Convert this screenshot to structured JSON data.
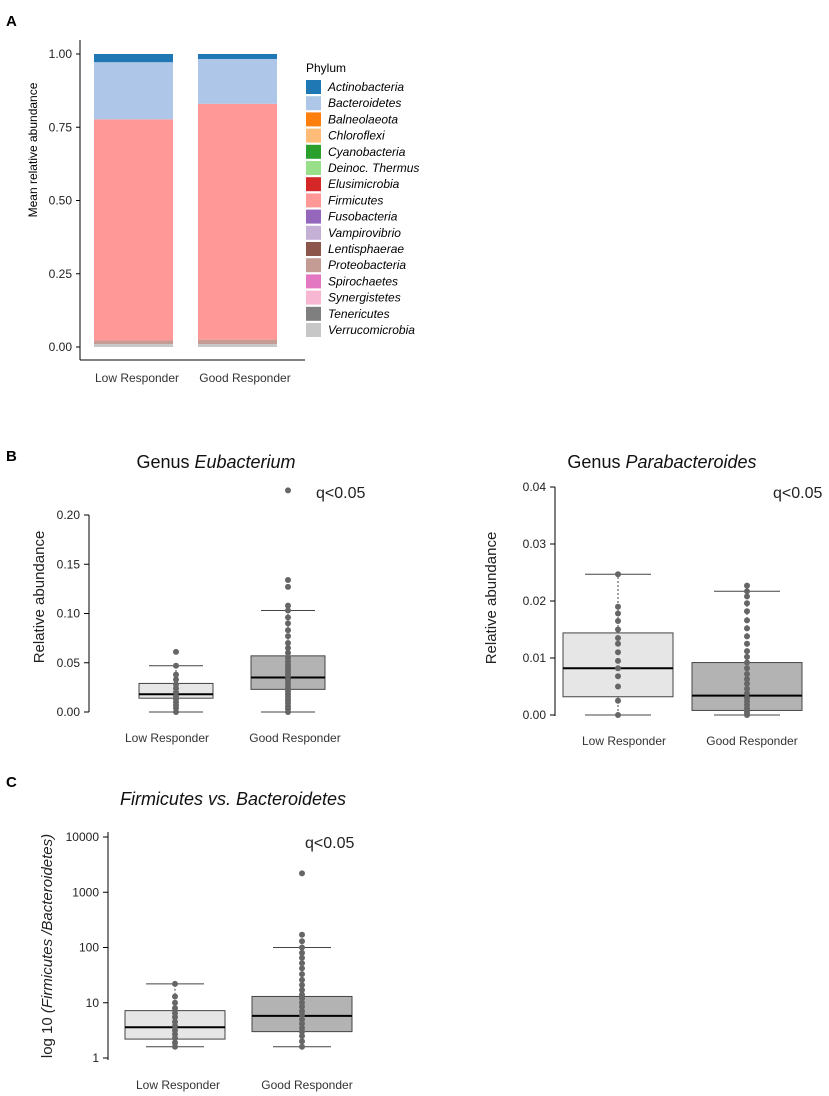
{
  "panels": {
    "a": "A",
    "b": "B",
    "c": "C"
  },
  "chart_data": [
    {
      "id": "stacked",
      "type": "bar",
      "stacked": true,
      "title": "",
      "xlabel": "",
      "ylabel": "Mean relative abundance",
      "ylim": [
        0,
        1
      ],
      "yticks": [
        0,
        0.25,
        0.5,
        0.75,
        1
      ],
      "ytick_labels": [
        "0.00",
        "0.25",
        "0.50",
        "0.75",
        "1.00"
      ],
      "categories": [
        "Low Responder",
        "Good Responder"
      ],
      "legend_title": "Phylum",
      "legend_position": "right",
      "series": [
        {
          "name": "Actinobacteria",
          "color": "#1f77b4",
          "values": [
            0.028,
            0.017
          ]
        },
        {
          "name": "Bacteroidetes",
          "color": "#aec7e8",
          "values": [
            0.195,
            0.153
          ]
        },
        {
          "name": "Balneolaeota",
          "color": "#ff7f0e",
          "values": [
            0.0,
            0.0
          ]
        },
        {
          "name": "Chloroflexi",
          "color": "#ffbb78",
          "values": [
            0.0,
            0.0
          ]
        },
        {
          "name": "Cyanobacteria",
          "color": "#2ca02c",
          "values": [
            0.0,
            0.0
          ]
        },
        {
          "name": "Deinoc. Thermus",
          "color": "#98df8a",
          "values": [
            0.0,
            0.0
          ]
        },
        {
          "name": "Elusimicrobia",
          "color": "#d62728",
          "values": [
            0.0,
            0.0
          ]
        },
        {
          "name": "Firmicutes",
          "color": "#ff9896",
          "values": [
            0.755,
            0.805
          ]
        },
        {
          "name": "Fusobacteria",
          "color": "#9467bd",
          "values": [
            0.0,
            0.0
          ]
        },
        {
          "name": "Vampirovibrio",
          "color": "#c5b0d5",
          "values": [
            0.0,
            0.0
          ]
        },
        {
          "name": "Lentisphaerae",
          "color": "#8c564b",
          "values": [
            0.0,
            0.0
          ]
        },
        {
          "name": "Proteobacteria",
          "color": "#c49c94",
          "values": [
            0.012,
            0.015
          ]
        },
        {
          "name": "Spirochaetes",
          "color": "#e377c2",
          "values": [
            0.0,
            0.0
          ]
        },
        {
          "name": "Synergistetes",
          "color": "#f7b6d2",
          "values": [
            0.0,
            0.0
          ]
        },
        {
          "name": "Tenericutes",
          "color": "#7f7f7f",
          "values": [
            0.0,
            0.0
          ]
        },
        {
          "name": "Verrucomicrobia",
          "color": "#c7c7c7",
          "values": [
            0.01,
            0.01
          ]
        }
      ]
    },
    {
      "id": "eubacterium",
      "type": "box",
      "title_prefix": "Genus ",
      "title_italic": "Eubacterium",
      "annotation": "q<0.05",
      "ylabel": "Relative abundance",
      "ylim": [
        0,
        0.2
      ],
      "yticks": [
        0,
        0.05,
        0.1,
        0.15,
        0.2
      ],
      "ytick_labels": [
        "0.00",
        "0.05",
        "0.10",
        "0.15",
        "0.20"
      ],
      "categories": [
        "Low Responder",
        "Good Responder"
      ],
      "boxes": [
        {
          "q1": 0.014,
          "median": 0.018,
          "q3": 0.029,
          "whisker_low": 0.0,
          "whisker_high": 0.047,
          "fill": "#e6e6e6",
          "points": [
            0.0,
            0.004,
            0.007,
            0.01,
            0.013,
            0.016,
            0.02,
            0.024,
            0.028,
            0.033,
            0.038,
            0.047,
            0.061
          ]
        },
        {
          "q1": 0.023,
          "median": 0.035,
          "q3": 0.057,
          "whisker_low": 0.0,
          "whisker_high": 0.103,
          "fill": "#b3b3b3",
          "points": [
            0.0,
            0.003,
            0.006,
            0.009,
            0.012,
            0.015,
            0.018,
            0.021,
            0.024,
            0.027,
            0.03,
            0.033,
            0.036,
            0.039,
            0.042,
            0.045,
            0.048,
            0.051,
            0.055,
            0.06,
            0.065,
            0.07,
            0.077,
            0.083,
            0.09,
            0.096,
            0.103,
            0.108,
            0.127,
            0.134,
            0.225
          ]
        }
      ]
    },
    {
      "id": "parabacteroides",
      "type": "box",
      "title_prefix": "Genus ",
      "title_italic": "Parabacteroides",
      "annotation": "q<0.05",
      "ylabel": "Relative abundance",
      "ylim": [
        0,
        0.04
      ],
      "yticks": [
        0,
        0.01,
        0.02,
        0.03,
        0.04
      ],
      "ytick_labels": [
        "0.00",
        "0.01",
        "0.02",
        "0.03",
        "0.04"
      ],
      "categories": [
        "Low Responder",
        "Good Responder"
      ],
      "boxes": [
        {
          "q1": 0.0032,
          "median": 0.0082,
          "q3": 0.0144,
          "whisker_low": 0.0,
          "whisker_high": 0.0247,
          "fill": "#e6e6e6",
          "points": [
            0.0,
            0.0025,
            0.005,
            0.0068,
            0.0082,
            0.0095,
            0.011,
            0.0125,
            0.0135,
            0.015,
            0.0165,
            0.0178,
            0.019,
            0.0247
          ]
        },
        {
          "q1": 0.0008,
          "median": 0.0034,
          "q3": 0.0092,
          "whisker_low": 0.0,
          "whisker_high": 0.0217,
          "fill": "#b3b3b3",
          "points": [
            0.0,
            0.0003,
            0.0007,
            0.0012,
            0.0018,
            0.0024,
            0.003,
            0.0038,
            0.0046,
            0.0055,
            0.0063,
            0.0072,
            0.0082,
            0.0092,
            0.0102,
            0.0112,
            0.0125,
            0.0138,
            0.0152,
            0.0166,
            0.0182,
            0.0196,
            0.0208,
            0.0217,
            0.0227
          ]
        }
      ]
    },
    {
      "id": "ratio",
      "type": "box",
      "log_scale": true,
      "title_italic": "Firmicutes vs. Bacteroidetes",
      "annotation": "q<0.05",
      "ylabel_prefix": "log 10 ",
      "ylabel_italic": "(Firmicutes /Bacteroidetes)",
      "ylim": [
        1,
        10000
      ],
      "yticks": [
        1,
        10,
        100,
        1000,
        10000
      ],
      "ytick_labels": [
        "1",
        "10",
        "100",
        "1000",
        "10000"
      ],
      "categories": [
        "Low Responder",
        "Good Responder"
      ],
      "boxes": [
        {
          "q1": 2.2,
          "median": 3.6,
          "q3": 7.2,
          "whisker_low": 1.6,
          "whisker_high": 22,
          "fill": "#e6e6e6",
          "points": [
            1.6,
            1.9,
            2.3,
            2.7,
            3.2,
            3.8,
            4.5,
            5.5,
            6.5,
            8.0,
            10,
            13,
            22
          ]
        },
        {
          "q1": 3.0,
          "median": 5.8,
          "q3": 13,
          "whisker_low": 1.6,
          "whisker_high": 100,
          "fill": "#b3b3b3",
          "points": [
            1.6,
            2.0,
            2.5,
            3.0,
            3.5,
            4.2,
            5.0,
            6.0,
            7.0,
            8.5,
            10,
            12,
            14,
            17,
            21,
            26,
            33,
            42,
            52,
            65,
            80,
            100,
            130,
            170,
            2200
          ]
        }
      ]
    }
  ]
}
